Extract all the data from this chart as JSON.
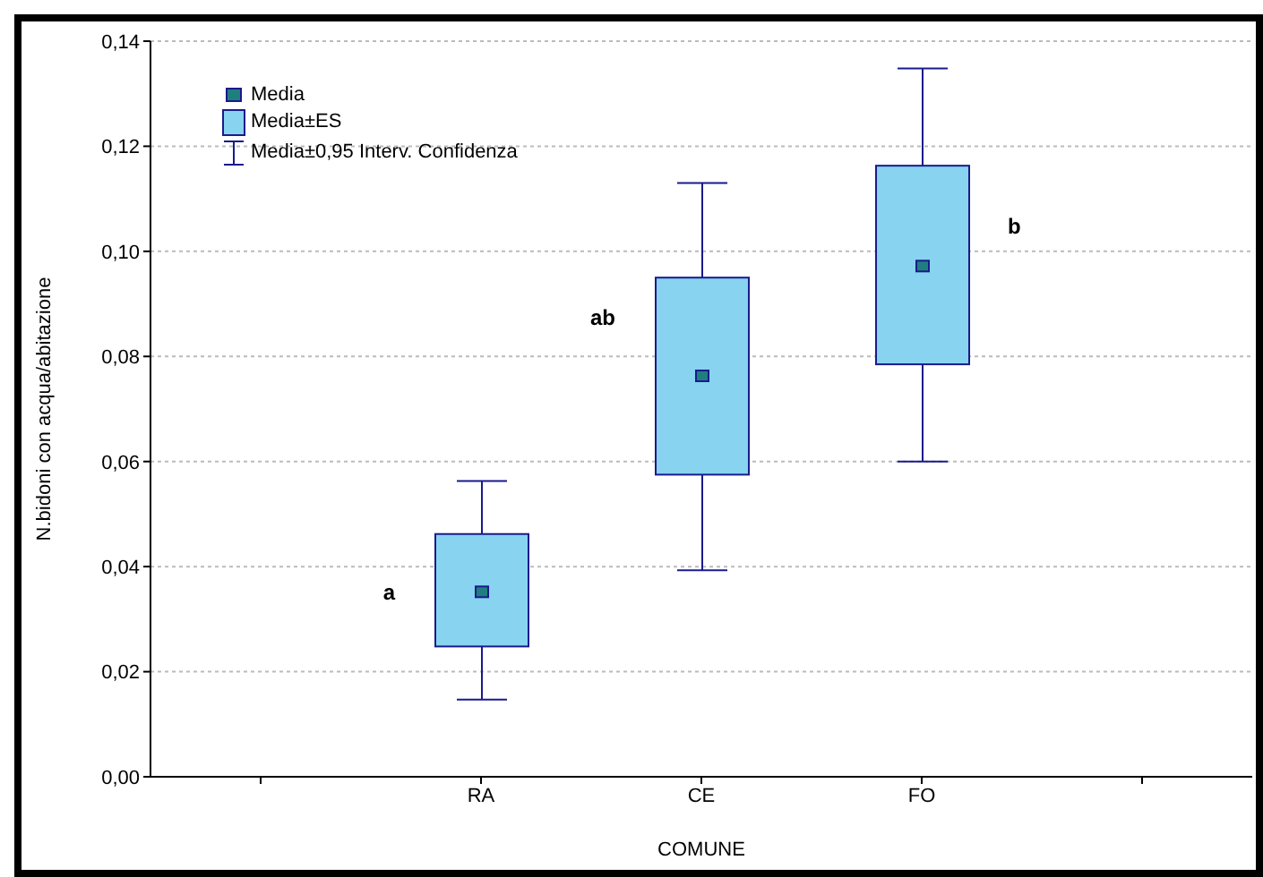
{
  "chart_data": {
    "type": "box",
    "xlabel": "COMUNE",
    "ylabel": "N.bidoni con acqua/abitazione",
    "categories": [
      null,
      "RA",
      "CE",
      "FO",
      null
    ],
    "boxes": [
      null,
      {
        "low": 0.0147,
        "q1": 0.0248,
        "median": 0.0352,
        "q3": 0.0462,
        "high": 0.0563
      },
      {
        "low": 0.0393,
        "q1": 0.0575,
        "median": 0.0763,
        "q3": 0.095,
        "high": 0.113
      },
      {
        "low": 0.06,
        "q1": 0.0785,
        "median": 0.0972,
        "q3": 0.1163,
        "high": 0.1348
      },
      null
    ],
    "color": "#87d3f0",
    "ylim": [
      0,
      0.14
    ],
    "yticks": [
      {
        "value": 0,
        "label": "0,00"
      },
      {
        "value": 0.02,
        "label": "0,02"
      },
      {
        "value": 0.04,
        "label": "0,04"
      },
      {
        "value": 0.06,
        "label": "0,06"
      },
      {
        "value": 0.08,
        "label": "0,08"
      },
      {
        "value": 0.1,
        "label": "0,10"
      },
      {
        "value": 0.12,
        "label": "0,12"
      },
      {
        "value": 0.14,
        "label": "0,14"
      }
    ],
    "grid": "y",
    "annotations": [
      "Media",
      "Media±ES",
      "Media±0,95 Interv. Confidenza",
      "a",
      "ab",
      "b"
    ]
  }
}
